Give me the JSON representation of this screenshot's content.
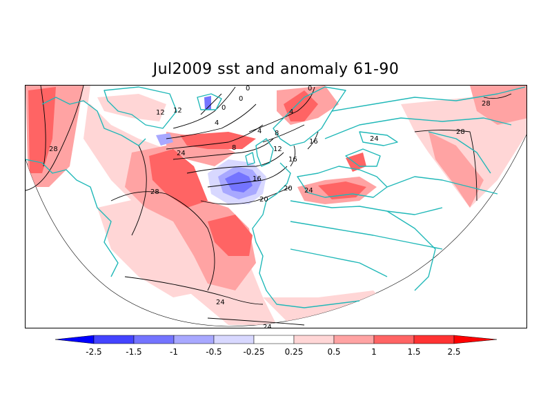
{
  "title": "Jul2009 sst and anomaly 61-90",
  "colors": {
    "land_coast": "#20b8b8",
    "contour": "#000000",
    "warm_1": "#ffd6d6",
    "warm_2": "#ffa3a3",
    "warm_3": "#ff6464",
    "warm_4": "#ff3333",
    "warm_5": "#ff0000",
    "cool_1": "#d8d8ff",
    "cool_2": "#a8a8ff",
    "cool_3": "#7474ff",
    "cool_4": "#4444ff",
    "cool_5": "#0000ff"
  },
  "colorbar": {
    "ticks": [
      "-2.5",
      "-1.5",
      "-1",
      "-0.5",
      "-0.25",
      "0.25",
      "0.5",
      "1",
      "1.5",
      "2.5"
    ]
  },
  "contour_labels": [
    "28",
    "24",
    "28",
    "20",
    "16",
    "12",
    "8",
    "4",
    "0",
    "0",
    "4",
    "12",
    "16",
    "20",
    "24",
    "8",
    "4",
    "0",
    "16",
    "12",
    "24",
    "28",
    "28",
    "24",
    "24",
    "0"
  ]
}
